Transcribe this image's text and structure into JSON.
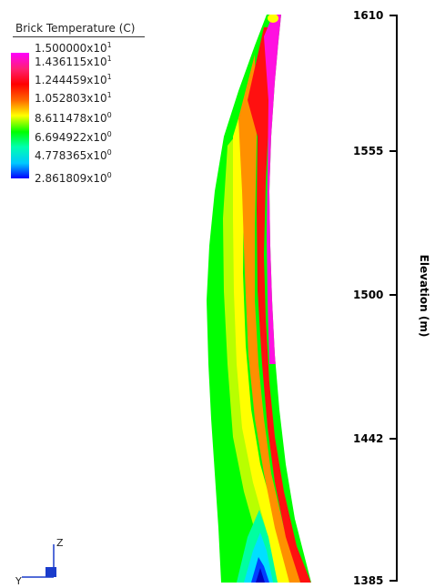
{
  "legend": {
    "title": "Brick Temperature  (C)",
    "levels": [
      {
        "mantissa": "1.500000",
        "exponent": "1"
      },
      {
        "mantissa": "1.436115",
        "exponent": "1"
      },
      {
        "mantissa": "1.244459",
        "exponent": "1"
      },
      {
        "mantissa": "1.052803",
        "exponent": "1"
      },
      {
        "mantissa": "8.611478",
        "exponent": "0"
      },
      {
        "mantissa": "6.694922",
        "exponent": "0"
      },
      {
        "mantissa": "4.778365",
        "exponent": "0"
      },
      {
        "mantissa": "2.861809",
        "exponent": "0"
      }
    ],
    "multiplier_text": "x10",
    "colors": [
      "#ff00ff",
      "#ff2070",
      "#ff0000",
      "#ff6a00",
      "#ffff00",
      "#00ff00",
      "#00ffb0",
      "#00c8ff",
      "#0000ff"
    ]
  },
  "axis": {
    "title": "Elevation (m)",
    "ticks": [
      {
        "value": 1610,
        "label": "1610"
      },
      {
        "value": 1555,
        "label": "1555"
      },
      {
        "value": 1500,
        "label": "1500"
      },
      {
        "value": 1442,
        "label": "1442"
      },
      {
        "value": 1385,
        "label": "1385"
      }
    ],
    "range": [
      1385,
      1610
    ]
  },
  "triad": {
    "z_label": "Z",
    "y_label": "Y"
  },
  "bands": [
    "green",
    "yellow",
    "orange",
    "red",
    "magenta"
  ]
}
